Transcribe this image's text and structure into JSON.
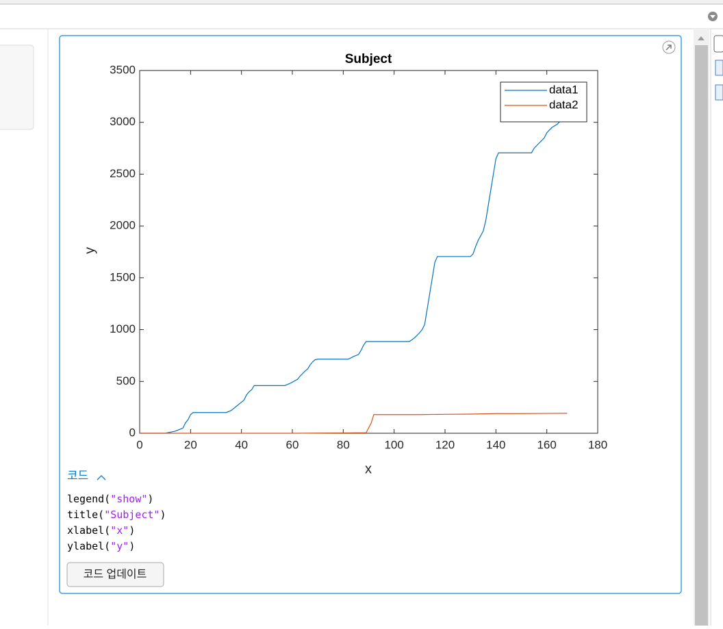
{
  "chart_data": {
    "type": "line",
    "title": "Subject",
    "xlabel": "x",
    "ylabel": "y",
    "series": [
      {
        "name": "data1",
        "color": "#0072bd",
        "x": [
          0,
          10,
          12,
          14,
          16,
          17,
          18,
          19,
          20,
          21,
          34,
          36,
          38,
          40,
          41,
          42,
          43,
          44,
          45,
          57,
          59,
          62,
          63,
          65,
          66,
          67,
          68,
          69,
          70,
          82,
          84,
          86,
          87,
          88,
          89,
          106,
          108,
          110,
          111,
          112,
          113,
          114,
          115,
          116,
          117,
          130,
          131,
          132,
          133,
          135,
          136,
          137,
          138,
          139,
          140,
          141,
          154,
          155,
          157,
          159,
          160,
          162,
          164,
          165,
          168
        ],
        "values": [
          0,
          0,
          10,
          20,
          40,
          50,
          100,
          130,
          180,
          200,
          200,
          220,
          260,
          300,
          320,
          370,
          400,
          420,
          460,
          460,
          480,
          520,
          550,
          600,
          620,
          660,
          690,
          710,
          715,
          715,
          740,
          760,
          800,
          850,
          885,
          885,
          920,
          970,
          1000,
          1050,
          1200,
          1350,
          1500,
          1650,
          1705,
          1705,
          1730,
          1800,
          1860,
          1950,
          2050,
          2200,
          2350,
          2500,
          2650,
          2705,
          2705,
          2750,
          2800,
          2850,
          2900,
          2950,
          2980,
          3005,
          3010
        ]
      },
      {
        "name": "data2",
        "color": "#d95319",
        "x": [
          0,
          60,
          89,
          91,
          92,
          93,
          110,
          120,
          130,
          140,
          150,
          160,
          168
        ],
        "values": [
          0,
          0,
          5,
          100,
          180,
          180,
          180,
          183,
          185,
          190,
          190,
          192,
          193
        ]
      }
    ],
    "xlim": [
      0,
      180
    ],
    "xticks": [
      0,
      20,
      40,
      60,
      80,
      100,
      120,
      140,
      160,
      180
    ],
    "ylim": [
      0,
      3500
    ],
    "yticks": [
      0,
      500,
      1000,
      1500,
      2000,
      2500,
      3000,
      3500
    ],
    "grid": false,
    "legend": "northeast"
  },
  "code_toggle": "코드",
  "code_lines": [
    {
      "fn": "legend(",
      "arg": "\"show\"",
      "end": ")"
    },
    {
      "fn": "title(",
      "arg": "\"Subject\"",
      "end": ")"
    },
    {
      "fn": "xlabel(",
      "arg": "\"x\"",
      "end": ")"
    },
    {
      "fn": "ylabel(",
      "arg": "\"y\"",
      "end": ")"
    }
  ],
  "update_button": "코드 업데이트"
}
